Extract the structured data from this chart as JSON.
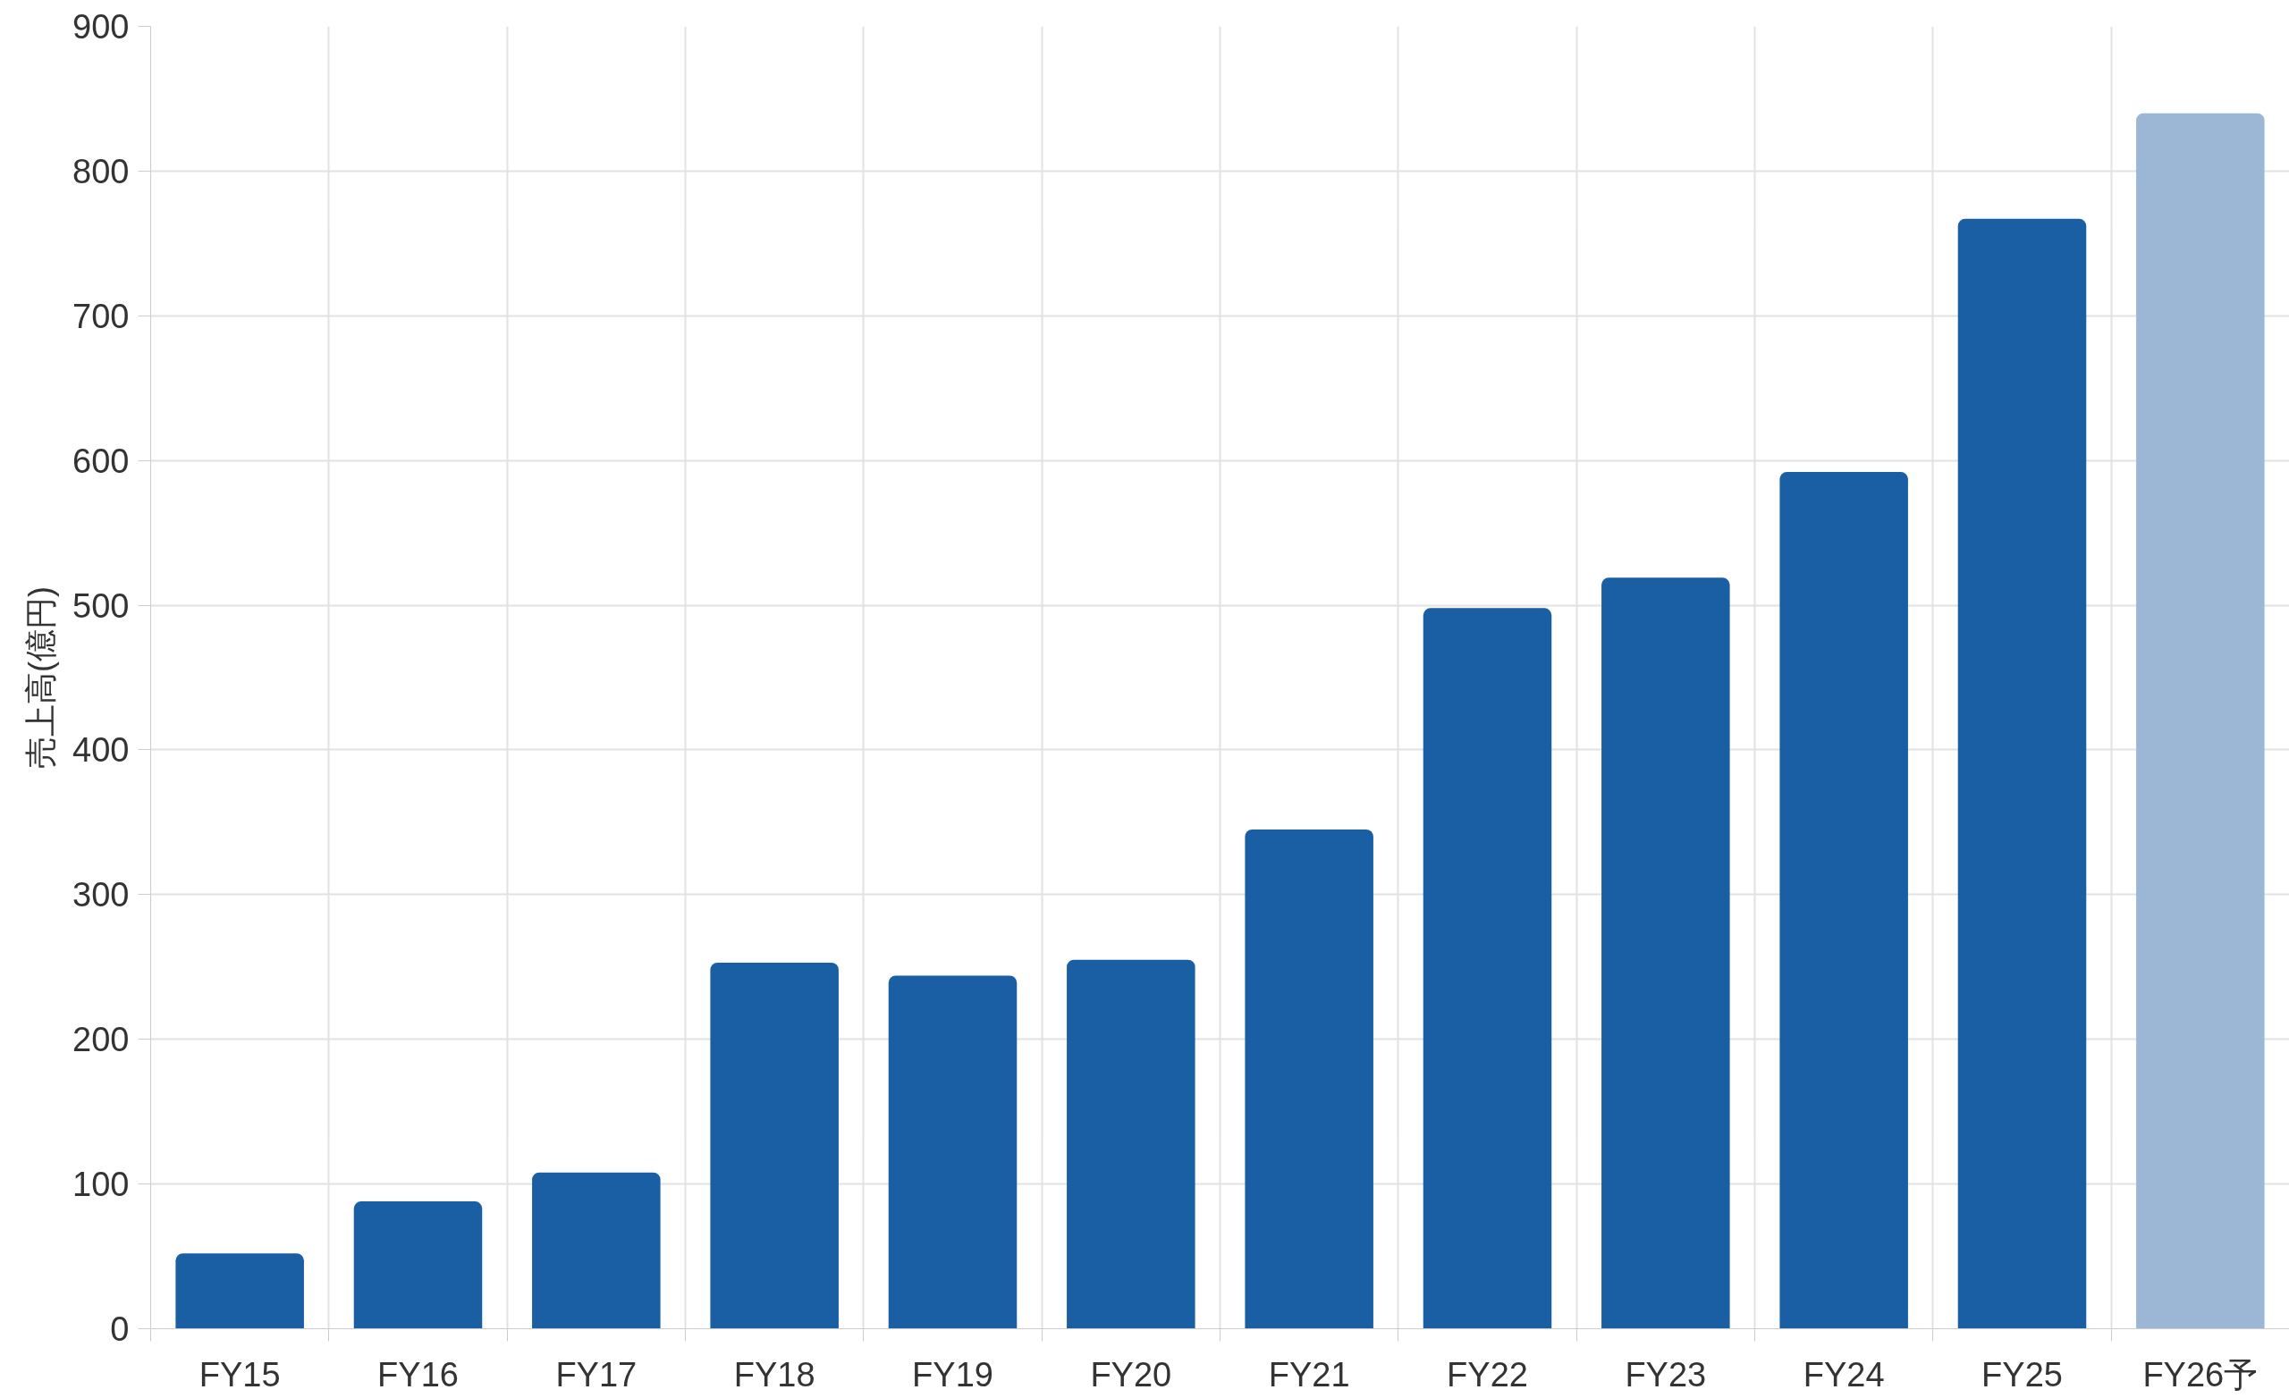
{
  "chart_data": {
    "type": "bar",
    "ylabel": "売上高(億円)",
    "categories": [
      "FY15",
      "FY16",
      "FY17",
      "FY18",
      "FY19",
      "FY20",
      "FY21",
      "FY22",
      "FY23",
      "FY24",
      "FY25",
      "FY26予"
    ],
    "values": [
      52,
      88,
      108,
      253,
      244,
      255,
      345,
      498,
      519,
      592,
      767,
      840
    ],
    "colors": [
      "#1a5fa4",
      "#1a5fa4",
      "#1a5fa4",
      "#1a5fa4",
      "#1a5fa4",
      "#1a5fa4",
      "#1a5fa4",
      "#1a5fa4",
      "#1a5fa4",
      "#1a5fa4",
      "#1a5fa4",
      "#9cb6d6"
    ],
    "ylim": [
      0,
      900
    ],
    "yticks": [
      0,
      100,
      200,
      300,
      400,
      500,
      600,
      700,
      800,
      900
    ],
    "grid": true
  }
}
